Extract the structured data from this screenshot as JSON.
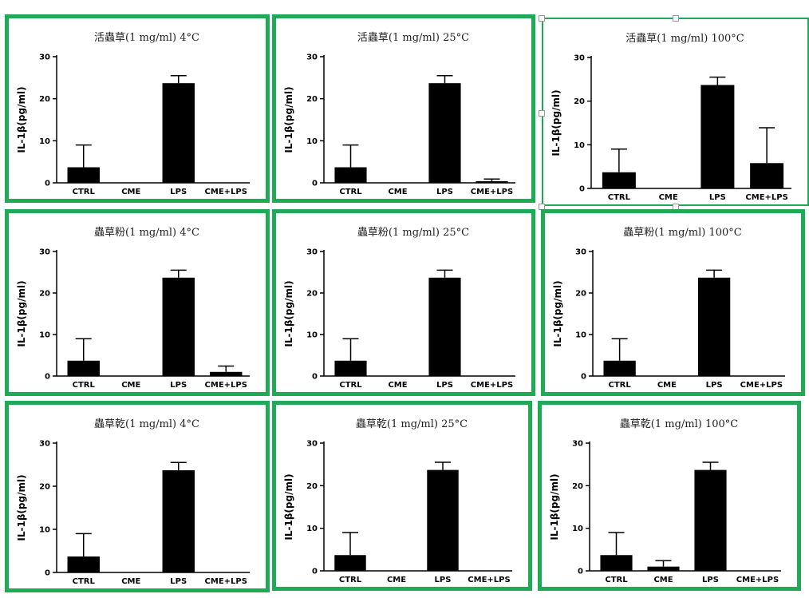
{
  "chart_data": [
    {
      "type": "bar",
      "title": "活蟲草(1 mg/ml) 4°C",
      "ylabel": "IL-1β(pg/ml)",
      "ylim": [
        0,
        30
      ],
      "yticks": [
        0,
        10,
        20,
        30
      ],
      "categories": [
        "CTRL",
        "CME",
        "LPS",
        "CME+LPS"
      ],
      "values": [
        3.7,
        0,
        23.7,
        0
      ],
      "errors": [
        5.3,
        0,
        1.8,
        0
      ]
    },
    {
      "type": "bar",
      "title": "活蟲草(1 mg/ml) 25°C",
      "ylabel": "IL-1β(pg/ml)",
      "ylim": [
        0,
        30
      ],
      "yticks": [
        0,
        10,
        20,
        30
      ],
      "categories": [
        "CTRL",
        "CME",
        "LPS",
        "CME+LPS"
      ],
      "values": [
        3.7,
        0,
        23.7,
        0.4
      ],
      "errors": [
        5.3,
        0,
        1.8,
        0.5
      ]
    },
    {
      "type": "bar",
      "title": "活蟲草(1 mg/ml) 100°C",
      "ylabel": "IL-1β(pg/ml)",
      "ylim": [
        0,
        30
      ],
      "yticks": [
        0,
        10,
        20,
        30
      ],
      "categories": [
        "CTRL",
        "CME",
        "LPS",
        "CME+LPS"
      ],
      "values": [
        3.7,
        0,
        23.7,
        5.8
      ],
      "errors": [
        5.3,
        0,
        1.8,
        8.1
      ]
    },
    {
      "type": "bar",
      "title": "蟲草粉(1 mg/ml) 4°C",
      "ylabel": "IL-1β(pg/ml)",
      "ylim": [
        0,
        30
      ],
      "yticks": [
        0,
        10,
        20,
        30
      ],
      "categories": [
        "CTRL",
        "CME",
        "LPS",
        "CME+LPS"
      ],
      "values": [
        3.7,
        0,
        23.7,
        1.0
      ],
      "errors": [
        5.3,
        0,
        1.8,
        1.4
      ]
    },
    {
      "type": "bar",
      "title": "蟲草粉(1 mg/ml) 25°C",
      "ylabel": "IL-1β(pg/ml)",
      "ylim": [
        0,
        30
      ],
      "yticks": [
        0,
        10,
        20,
        30
      ],
      "categories": [
        "CTRL",
        "CME",
        "LPS",
        "CME+LPS"
      ],
      "values": [
        3.7,
        0,
        23.7,
        0
      ],
      "errors": [
        5.3,
        0,
        1.8,
        0
      ]
    },
    {
      "type": "bar",
      "title": "蟲草粉(1 mg/ml) 100°C",
      "ylabel": "IL-1β(pg/ml)",
      "ylim": [
        0,
        30
      ],
      "yticks": [
        0,
        10,
        20,
        30
      ],
      "categories": [
        "CTRL",
        "CME",
        "LPS",
        "CME+LPS"
      ],
      "values": [
        3.7,
        0,
        23.7,
        0
      ],
      "errors": [
        5.3,
        0,
        1.8,
        0
      ]
    },
    {
      "type": "bar",
      "title": "蟲草乾(1 mg/ml) 4°C",
      "ylabel": "IL-1β(pg/ml)",
      "ylim": [
        0,
        30
      ],
      "yticks": [
        0,
        10,
        20,
        30
      ],
      "categories": [
        "CTRL",
        "CME",
        "LPS",
        "CME+LPS"
      ],
      "values": [
        3.7,
        0,
        23.7,
        0
      ],
      "errors": [
        5.3,
        0,
        1.8,
        0
      ]
    },
    {
      "type": "bar",
      "title": "蟲草乾(1 mg/ml) 25°C",
      "ylabel": "IL-1β(pg/ml)",
      "ylim": [
        0,
        30
      ],
      "yticks": [
        0,
        10,
        20,
        30
      ],
      "categories": [
        "CTRL",
        "CME",
        "LPS",
        "CME+LPS"
      ],
      "values": [
        3.7,
        0,
        23.7,
        0
      ],
      "errors": [
        5.3,
        0,
        1.8,
        0
      ]
    },
    {
      "type": "bar",
      "title": "蟲草乾(1 mg/ml) 100°C",
      "ylabel": "IL-1β(pg/ml)",
      "ylim": [
        0,
        30
      ],
      "yticks": [
        0,
        10,
        20,
        30
      ],
      "categories": [
        "CTRL",
        "CME",
        "LPS",
        "CME+LPS"
      ],
      "values": [
        3.7,
        1.0,
        23.7,
        0
      ],
      "errors": [
        5.3,
        1.4,
        1.8,
        0
      ]
    }
  ],
  "colors": {
    "frame": "#1faa55",
    "bar": "#000000",
    "axis": "#000000"
  }
}
